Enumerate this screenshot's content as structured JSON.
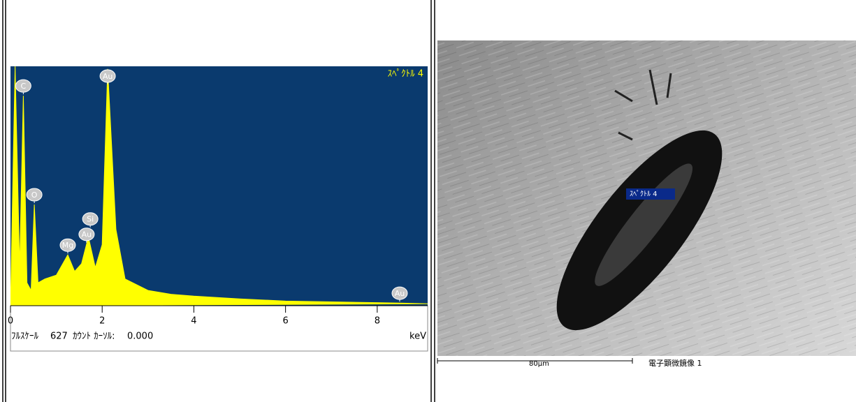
{
  "chart_data": {
    "type": "area",
    "title": "ｽﾍﾟｸﾄﾙ 4",
    "color": "#ffff00",
    "background": "#0a3a6e",
    "x": [
      0,
      0.1,
      0.2,
      0.28,
      0.36,
      0.45,
      0.52,
      0.6,
      0.75,
      1.0,
      1.25,
      1.4,
      1.55,
      1.7,
      1.85,
      2.0,
      2.12,
      2.3,
      2.5,
      3.0,
      3.5,
      4.0,
      5.0,
      6.0,
      7.0,
      8.0,
      8.5,
      9.1
    ],
    "values": [
      0,
      627,
      100,
      550,
      60,
      40,
      265,
      60,
      70,
      80,
      133,
      90,
      110,
      180,
      100,
      160,
      620,
      200,
      70,
      40,
      30,
      25,
      18,
      12,
      10,
      8,
      7,
      5
    ],
    "xlim": [
      0,
      9.1
    ],
    "ylim": [
      0,
      627
    ],
    "xticks": [
      0,
      2,
      4,
      6,
      8
    ],
    "x_label": "keV",
    "annotations": [
      {
        "label": "C",
        "x": 0.28
      },
      {
        "label": "O",
        "x": 0.52
      },
      {
        "label": "Mg",
        "x": 1.25
      },
      {
        "label": "Au",
        "x": 1.66
      },
      {
        "label": "Si",
        "x": 1.74
      },
      {
        "label": "Au",
        "x": 2.12
      },
      {
        "label": "Au",
        "x": 8.49
      }
    ],
    "status": {
      "full_scale_text": "ﾌﾙｽｹｰﾙ",
      "counts_text": "ｶｳﾝﾄ ｶｰｿﾙ:",
      "cursor": "0.000"
    }
  },
  "sem": {
    "marker_label": "ｽﾍﾟｸﾄﾙ 4",
    "scale_label": "80μm",
    "caption": "電子顕微鏡像 1"
  }
}
